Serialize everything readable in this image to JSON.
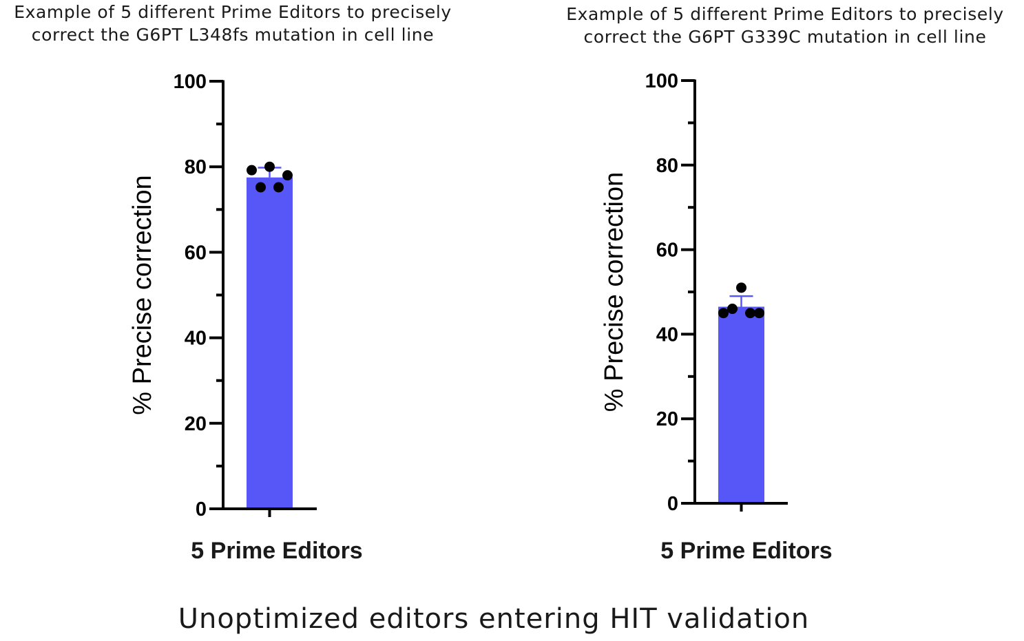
{
  "footer": "Unoptimized editors entering HIT validation",
  "chart_data": [
    {
      "type": "bar",
      "title_lines": [
        "Example of 5 different Prime Editors to precisely",
        "correct the G6PT L348fs mutation in cell line"
      ],
      "categories": [
        "5 Prime Editors"
      ],
      "values": [
        77.5
      ],
      "error_bar": {
        "upper": 79.8
      },
      "points": [
        79.2,
        80.0,
        75.2,
        75.2,
        78.0
      ],
      "xlabel": "5 Prime Editors",
      "ylabel": "% Precise correction",
      "ylim": [
        0,
        100
      ],
      "yticks": [
        0,
        20,
        40,
        60,
        80,
        100
      ],
      "ytick_labels": [
        "0",
        "20",
        "40",
        "60",
        "80",
        "100"
      ],
      "bar_color": "#5757f8",
      "grid": false
    },
    {
      "type": "bar",
      "title_lines": [
        "Example of 5 different Prime Editors to precisely",
        "correct the G6PT G339C mutation in cell line"
      ],
      "categories": [
        "5 Prime Editors"
      ],
      "values": [
        46.5
      ],
      "error_bar": {
        "upper": 49.0
      },
      "points": [
        45.0,
        46.0,
        51.0,
        45.0,
        45.0
      ],
      "xlabel": "5 Prime Editors",
      "ylabel": "% Precise correction",
      "ylim": [
        0,
        100
      ],
      "yticks": [
        0,
        20,
        40,
        60,
        80,
        100
      ],
      "ytick_labels": [
        "0",
        "20",
        "40",
        "60",
        "80",
        "100"
      ],
      "bar_color": "#5757f8",
      "grid": false
    }
  ]
}
